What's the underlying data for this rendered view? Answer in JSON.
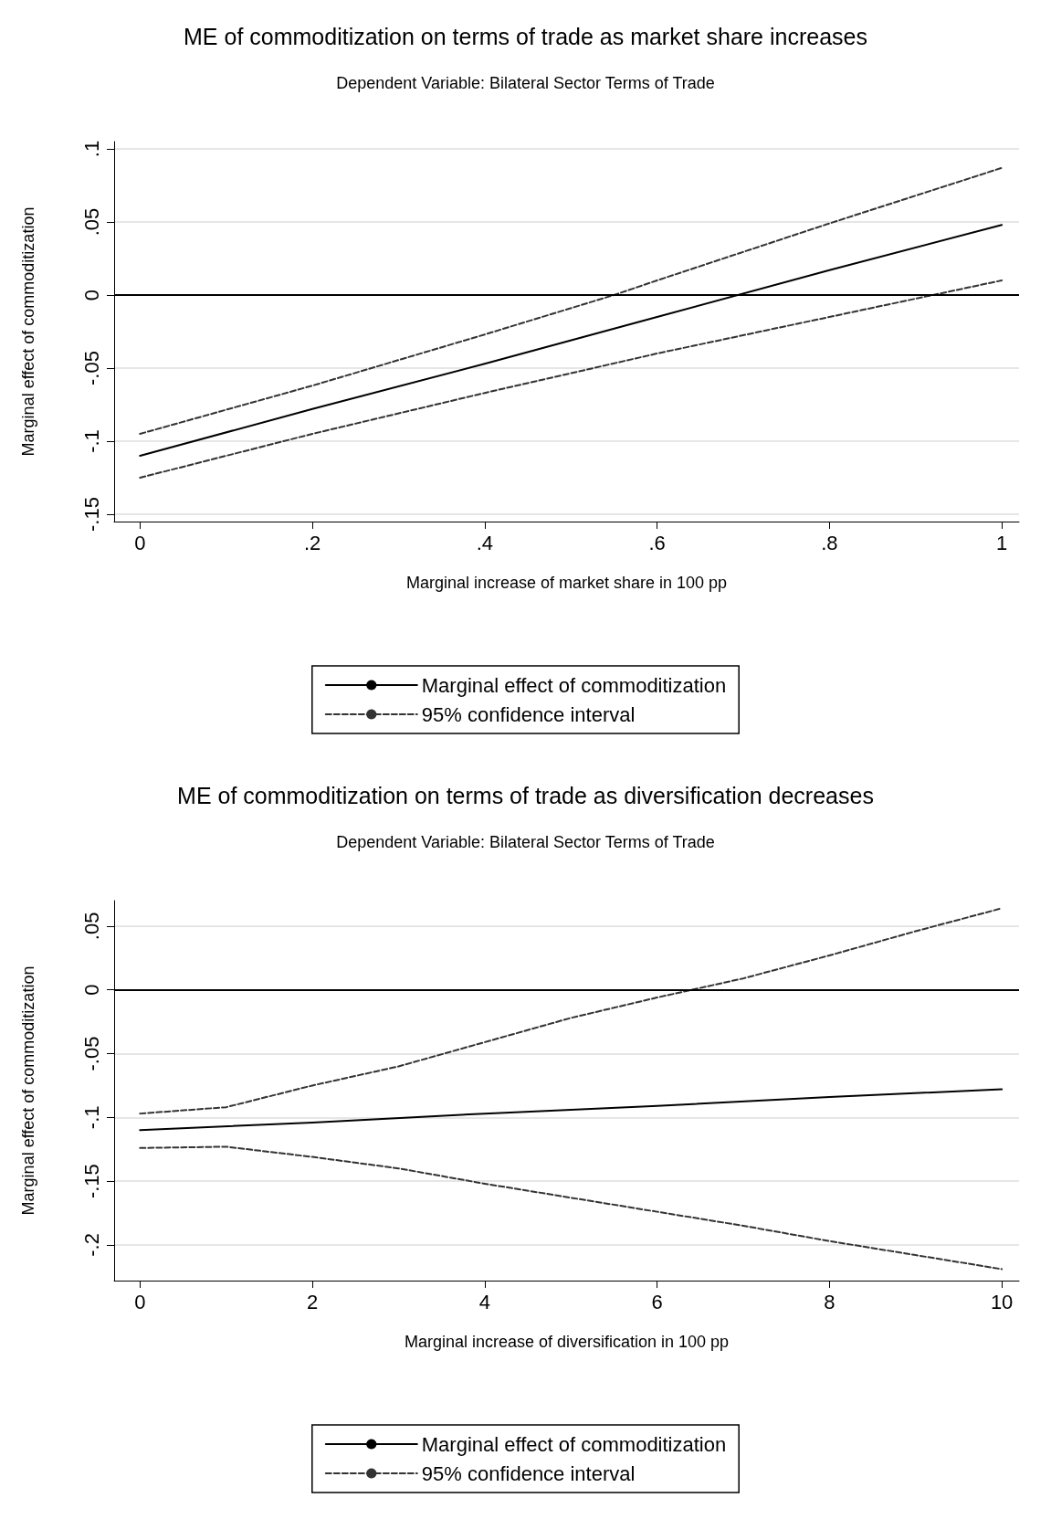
{
  "chart_data": [
    {
      "type": "line",
      "title": "ME of commoditization on terms of trade as market share increases",
      "subtitle": "Dependent Variable: Bilateral Sector Terms of Trade",
      "xlabel": "Marginal increase of market share in 100 pp",
      "ylabel": "Marginal effect of commoditization",
      "xlim": [
        -0.03,
        1.02
      ],
      "xticks": [
        0,
        {
          "value": 0.2,
          "label": ".2"
        },
        {
          "value": 0.4,
          "label": ".4"
        },
        {
          "value": 0.6,
          "label": ".6"
        },
        {
          "value": 0.8,
          "label": ".8"
        },
        1
      ],
      "ylim": [
        -0.155,
        0.105
      ],
      "yticks": [
        {
          "value": -0.15,
          "label": "-.15"
        },
        {
          "value": -0.1,
          "label": "-.1"
        },
        {
          "value": -0.05,
          "label": "-.05"
        },
        0,
        {
          "value": 0.05,
          "label": ".05"
        },
        {
          "value": 0.1,
          "label": ".1"
        }
      ],
      "grid": "y",
      "legend": "bottom",
      "marker": "none",
      "ref_lines": [
        {
          "axis": "y",
          "value": 0,
          "color": "#000000",
          "line_style": "solid"
        }
      ],
      "series": [
        {
          "name": "Marginal effect of commoditization",
          "color": "#000000",
          "line_style": "solid",
          "x": [
            0,
            0.2,
            0.4,
            0.6,
            0.8,
            1
          ],
          "values": [
            -0.11,
            -0.078,
            -0.047,
            -0.015,
            0.017,
            0.048
          ]
        },
        {
          "name": "95% confidence interval",
          "color": "#333333",
          "line_style": "dashed",
          "x": [
            0,
            0.2,
            0.4,
            0.55,
            0.6,
            0.8,
            1
          ],
          "values": [
            -0.095,
            -0.062,
            -0.027,
            0,
            0.01,
            0.049,
            0.087
          ]
        },
        {
          "color": "#333333",
          "line_style": "dashed",
          "x": [
            0,
            0.2,
            0.4,
            0.6,
            0.8,
            0.92,
            1
          ],
          "values": [
            -0.125,
            -0.095,
            -0.067,
            -0.04,
            -0.015,
            0,
            0.01
          ]
        }
      ]
    },
    {
      "type": "line",
      "title": "ME of commoditization on terms of trade as diversification decreases",
      "subtitle": "Dependent Variable: Bilateral Sector Terms of Trade",
      "xlabel": "Marginal increase of diversification in 100 pp",
      "ylabel": "Marginal effect of commoditization",
      "xlim": [
        -0.3,
        10.2
      ],
      "xticks": [
        0,
        2,
        4,
        6,
        8,
        10
      ],
      "ylim": [
        -0.228,
        0.07
      ],
      "yticks": [
        {
          "value": -0.2,
          "label": "-.2"
        },
        {
          "value": -0.15,
          "label": "-.15"
        },
        {
          "value": -0.1,
          "label": "-.1"
        },
        {
          "value": -0.05,
          "label": "-.05"
        },
        0,
        {
          "value": 0.05,
          "label": ".05"
        }
      ],
      "grid": "y",
      "legend": "bottom",
      "marker": "none",
      "ref_lines": [
        {
          "axis": "y",
          "value": 0,
          "color": "#000000",
          "line_style": "solid"
        }
      ],
      "series": [
        {
          "name": "Marginal effect of commoditization",
          "color": "#000000",
          "line_style": "solid",
          "x": [
            0,
            2,
            4,
            6,
            8,
            10
          ],
          "values": [
            -0.11,
            -0.104,
            -0.097,
            -0.091,
            -0.084,
            -0.078
          ]
        },
        {
          "name": "95% confidence interval",
          "color": "#333333",
          "line_style": "dashed",
          "x": [
            0,
            1,
            2,
            3,
            4,
            5,
            6,
            6.4,
            7,
            8,
            9,
            10
          ],
          "values": [
            -0.097,
            -0.092,
            -0.075,
            -0.06,
            -0.041,
            -0.022,
            -0.006,
            0,
            0.009,
            0.027,
            0.046,
            0.064
          ]
        },
        {
          "color": "#333333",
          "line_style": "dashed",
          "x": [
            0,
            1,
            2,
            3,
            4,
            5,
            6,
            7,
            8,
            9,
            10
          ],
          "values": [
            -0.124,
            -0.123,
            -0.131,
            -0.14,
            -0.152,
            -0.163,
            -0.174,
            -0.185,
            -0.197,
            -0.208,
            -0.219
          ]
        }
      ]
    }
  ]
}
